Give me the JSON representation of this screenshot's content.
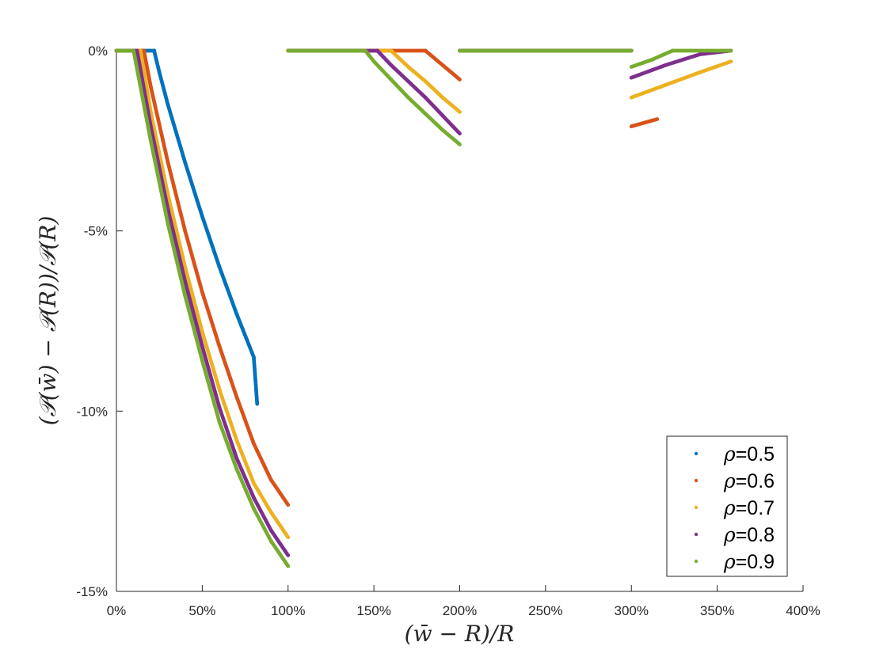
{
  "chart_data": {
    "type": "scatter",
    "xlabel": "(w̄ − R)/R",
    "ylabel": "(𝒫(w̄) − 𝒫(R))/𝒫(R)",
    "xlim": [
      0,
      400
    ],
    "ylim": [
      -15,
      0
    ],
    "x_ticks": [
      0,
      50,
      100,
      150,
      200,
      250,
      300,
      350,
      400
    ],
    "x_tick_labels": [
      "0%",
      "50%",
      "100%",
      "150%",
      "200%",
      "250%",
      "300%",
      "350%",
      "400%"
    ],
    "y_ticks": [
      0,
      -5,
      -10,
      -15
    ],
    "y_tick_labels": [
      "0%",
      "-5%",
      "-10%",
      "-15%"
    ],
    "grid": false,
    "legend_position": "bottom-right",
    "legend_prefix": "ρ",
    "series": [
      {
        "name": "=0.5",
        "color": "#0072BD",
        "segments": [
          {
            "x": [
              0,
              22,
              22.2,
              25,
              30,
              40,
              50,
              60,
              70,
              80,
              82
            ],
            "y": [
              0,
              0,
              -0.05,
              -0.6,
              -1.5,
              -3.1,
              -4.6,
              -6.0,
              -7.3,
              -8.5,
              -9.8
            ]
          }
        ]
      },
      {
        "name": "=0.6",
        "color": "#D95319",
        "segments": [
          {
            "x": [
              0,
              16,
              20,
              30,
              40,
              50,
              60,
              70,
              80,
              90,
              100
            ],
            "y": [
              0,
              0,
              -1.0,
              -3.1,
              -5.0,
              -6.7,
              -8.2,
              -9.6,
              -10.9,
              -11.9,
              -12.6
            ]
          },
          {
            "x": [
              100,
              180,
              185,
              190,
              200
            ],
            "y": [
              0,
              0,
              -0.2,
              -0.4,
              -0.8
            ]
          },
          {
            "x": [
              200,
              300
            ],
            "y": [
              0,
              0
            ]
          },
          {
            "x": [
              300,
              315
            ],
            "y": [
              -2.1,
              -1.9
            ]
          }
        ]
      },
      {
        "name": "=0.7",
        "color": "#EDB120",
        "segments": [
          {
            "x": [
              0,
              14,
              20,
              30,
              40,
              50,
              60,
              70,
              80,
              90,
              100
            ],
            "y": [
              0,
              0,
              -1.7,
              -4.0,
              -6.0,
              -7.8,
              -9.4,
              -10.8,
              -12.0,
              -12.8,
              -13.5
            ]
          },
          {
            "x": [
              100,
              160,
              170,
              180,
              190,
              200
            ],
            "y": [
              0,
              0,
              -0.45,
              -0.85,
              -1.3,
              -1.7
            ]
          },
          {
            "x": [
              200,
              300
            ],
            "y": [
              0,
              0
            ]
          },
          {
            "x": [
              300,
              320,
              340,
              358
            ],
            "y": [
              -1.3,
              -0.95,
              -0.6,
              -0.3
            ]
          }
        ]
      },
      {
        "name": "=0.8",
        "color": "#7E2F8E",
        "segments": [
          {
            "x": [
              0,
              12,
              20,
              30,
              40,
              50,
              60,
              70,
              80,
              90,
              100
            ],
            "y": [
              0,
              0,
              -2.1,
              -4.4,
              -6.4,
              -8.2,
              -9.9,
              -11.3,
              -12.4,
              -13.3,
              -14.0
            ]
          },
          {
            "x": [
              100,
              152,
              160,
              170,
              180,
              190,
              200
            ],
            "y": [
              0,
              0,
              -0.4,
              -0.85,
              -1.3,
              -1.8,
              -2.3
            ]
          },
          {
            "x": [
              200,
              300
            ],
            "y": [
              0,
              0
            ]
          },
          {
            "x": [
              300,
              320,
              340,
              358
            ],
            "y": [
              -0.75,
              -0.4,
              -0.1,
              0
            ]
          }
        ]
      },
      {
        "name": "=0.9",
        "color": "#77AC30",
        "segments": [
          {
            "x": [
              0,
              10,
              20,
              30,
              40,
              50,
              60,
              70,
              80,
              90,
              100
            ],
            "y": [
              0,
              0,
              -2.5,
              -4.8,
              -6.8,
              -8.6,
              -10.3,
              -11.6,
              -12.7,
              -13.6,
              -14.3
            ]
          },
          {
            "x": [
              100,
              145,
              150,
              160,
              170,
              180,
              190,
              200
            ],
            "y": [
              0,
              0,
              -0.3,
              -0.8,
              -1.3,
              -1.75,
              -2.2,
              -2.6
            ]
          },
          {
            "x": [
              200,
              300
            ],
            "y": [
              0,
              0
            ]
          },
          {
            "x": [
              300,
              312,
              324,
              358
            ],
            "y": [
              -0.45,
              -0.25,
              0,
              0
            ]
          }
        ]
      }
    ]
  }
}
